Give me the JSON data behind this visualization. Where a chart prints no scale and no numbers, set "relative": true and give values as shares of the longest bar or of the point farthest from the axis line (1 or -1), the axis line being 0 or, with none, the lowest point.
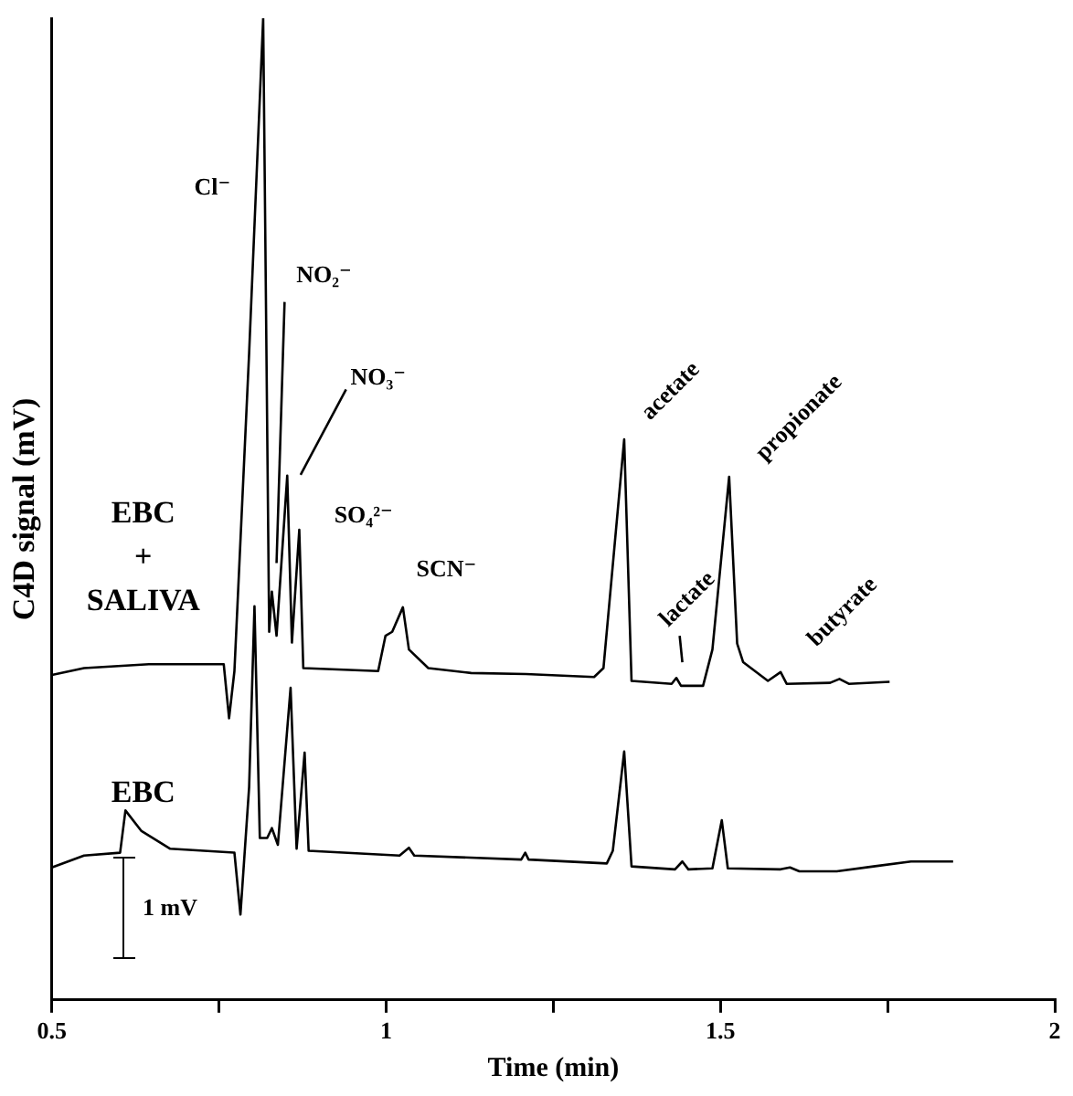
{
  "chart_data": {
    "type": "line",
    "xlabel": "Time (min)",
    "ylabel": "C4D signal (mV)",
    "relative": true,
    "legend": false,
    "marker": "none",
    "line_style": "solid",
    "tick_labels": "x",
    "grid": false,
    "xlim": [
      0.5,
      2
    ],
    "xticks": [
      0.5,
      {
        "value": 0.75,
        "label": null
      },
      1,
      {
        "value": 1.25,
        "label": null
      },
      1.5,
      {
        "value": 1.75,
        "label": null
      },
      2
    ],
    "series": [
      {
        "name": "EBC + SALIVA",
        "color": "#000000",
        "x": [
          0.5,
          0.548,
          0.645,
          0.757,
          0.765,
          0.773,
          0.795,
          0.816,
          0.825,
          0.829,
          0.836,
          0.852,
          0.859,
          0.87,
          0.876,
          0.988,
          0.999,
          1.009,
          1.025,
          1.034,
          1.063,
          1.127,
          1.209,
          1.311,
          1.325,
          1.356,
          1.367,
          1.427,
          1.434,
          1.441,
          1.474,
          1.488,
          1.513,
          1.525,
          1.534,
          1.571,
          1.59,
          1.599,
          1.664,
          1.678,
          1.692,
          1.753
        ],
        "values": [
          0.331,
          0.338,
          0.342,
          0.342,
          0.287,
          0.335,
          0.659,
          1,
          0.375,
          0.416,
          0.371,
          0.534,
          0.364,
          0.479,
          0.338,
          0.335,
          0.371,
          0.375,
          0.4,
          0.357,
          0.338,
          0.333,
          0.332,
          0.329,
          0.338,
          0.571,
          0.325,
          0.322,
          0.328,
          0.32,
          0.32,
          0.357,
          0.533,
          0.363,
          0.344,
          0.325,
          0.334,
          0.322,
          0.323,
          0.327,
          0.322,
          0.324
        ]
      },
      {
        "name": "EBC",
        "color": "#000000",
        "x": [
          0.5,
          0.548,
          0.602,
          0.61,
          0.634,
          0.677,
          0.773,
          0.782,
          0.795,
          0.803,
          0.811,
          0.822,
          0.829,
          0.838,
          0.857,
          0.866,
          0.878,
          0.884,
          1.02,
          1.034,
          1.042,
          1.202,
          1.208,
          1.213,
          1.33,
          1.339,
          1.356,
          1.367,
          1.432,
          1.443,
          1.452,
          1.488,
          1.502,
          1.511,
          1.59,
          1.604,
          1.618,
          1.674,
          1.729,
          1.785,
          1.848
        ],
        "values": [
          0.135,
          0.147,
          0.15,
          0.193,
          0.172,
          0.154,
          0.15,
          0.087,
          0.217,
          0.401,
          0.165,
          0.165,
          0.175,
          0.158,
          0.318,
          0.154,
          0.252,
          0.152,
          0.147,
          0.155,
          0.147,
          0.143,
          0.15,
          0.143,
          0.139,
          0.152,
          0.253,
          0.136,
          0.133,
          0.141,
          0.133,
          0.134,
          0.183,
          0.134,
          0.133,
          0.135,
          0.131,
          0.131,
          0.136,
          0.141,
          0.141
        ]
      }
    ],
    "annotations": [
      "Cl⁻",
      "NO₂⁻",
      "NO₃⁻",
      "SO₄²⁻",
      "SCN⁻",
      "acetate",
      "lactate",
      "propionate",
      "butyrate",
      "1 mV"
    ]
  }
}
